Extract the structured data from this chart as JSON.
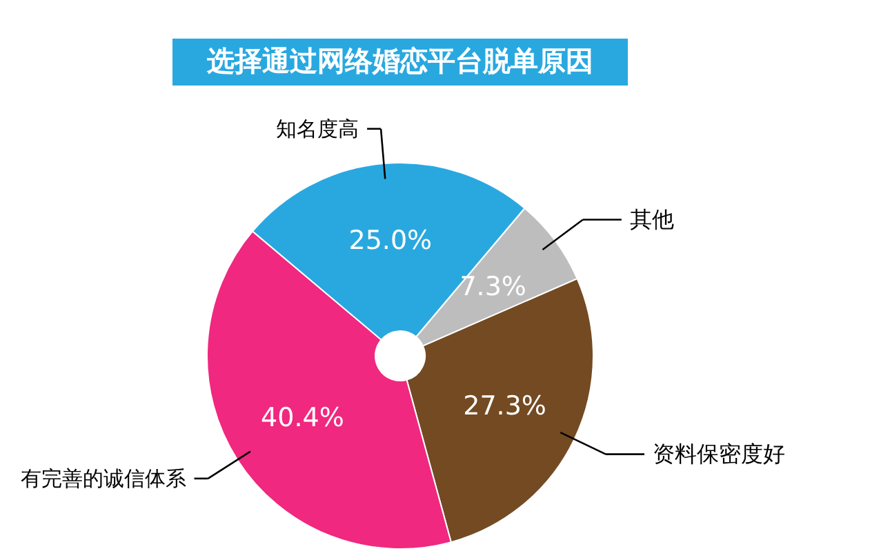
{
  "chart_data": {
    "type": "donut",
    "title": "选择通过网络婚恋平台脱单原因",
    "categories": [
      "知名度高",
      "其他",
      "资料保密度好",
      "有完善的诚信体系"
    ],
    "values": [
      25.0,
      7.3,
      27.3,
      40.4
    ],
    "value_labels": [
      "25.0%",
      "7.3%",
      "27.3%",
      "40.4%"
    ],
    "colors": [
      "#29a8e0",
      "#bdbdbd",
      "#734a22",
      "#f0287f"
    ]
  }
}
